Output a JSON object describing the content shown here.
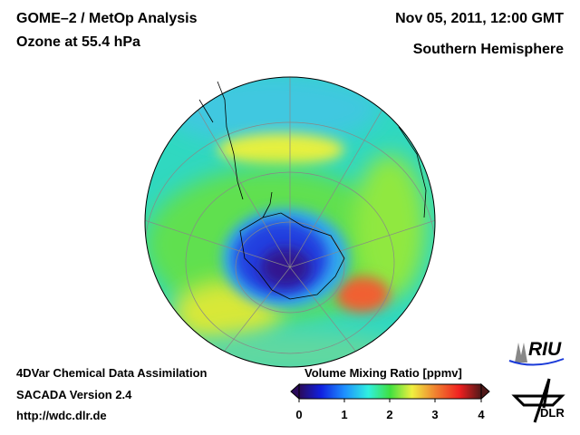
{
  "header": {
    "title_line1": "GOME–2 / MetOp Analysis",
    "title_line2": "Ozone at 55.4 hPa",
    "date": "Nov 05, 2011, 12:00 GMT",
    "region": "Southern Hemisphere"
  },
  "footer": {
    "line1": "4DVar Chemical Data Assimilation",
    "line2": "SACADA Version 2.4",
    "line3": "http://wdc.dlr.de"
  },
  "colorbar": {
    "title": "Volume Mixing Ratio [ppmv]",
    "ticks": [
      "0",
      "1",
      "2",
      "3",
      "4"
    ],
    "colors": [
      "#2a0a5a",
      "#1020e0",
      "#1e90ff",
      "#30f0e0",
      "#40e040",
      "#f0f040",
      "#f08030",
      "#f02020",
      "#501818"
    ]
  },
  "logos": {
    "riu": "RIU",
    "dlr": "DLR"
  }
}
